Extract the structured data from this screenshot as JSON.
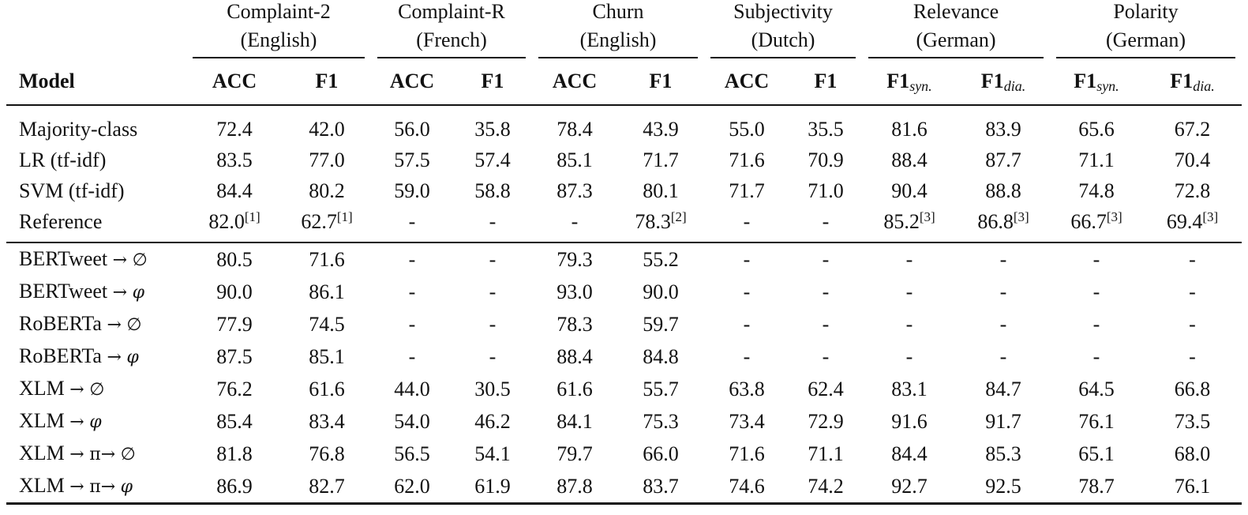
{
  "table": {
    "model_header": "Model",
    "groups": [
      {
        "name": "Complaint-2",
        "lang": "(English)",
        "cols": [
          {
            "label": "ACC",
            "sub": ""
          },
          {
            "label": "F1",
            "sub": ""
          }
        ]
      },
      {
        "name": "Complaint-R",
        "lang": "(French)",
        "cols": [
          {
            "label": "ACC",
            "sub": ""
          },
          {
            "label": "F1",
            "sub": ""
          }
        ]
      },
      {
        "name": "Churn",
        "lang": "(English)",
        "cols": [
          {
            "label": "ACC",
            "sub": ""
          },
          {
            "label": "F1",
            "sub": ""
          }
        ]
      },
      {
        "name": "Subjectivity",
        "lang": "(Dutch)",
        "cols": [
          {
            "label": "ACC",
            "sub": ""
          },
          {
            "label": "F1",
            "sub": ""
          }
        ]
      },
      {
        "name": "Relevance",
        "lang": "(German)",
        "cols": [
          {
            "label": "F1",
            "sub": "syn."
          },
          {
            "label": "F1",
            "sub": "dia."
          }
        ]
      },
      {
        "name": "Polarity",
        "lang": "(German)",
        "cols": [
          {
            "label": "F1",
            "sub": "syn."
          },
          {
            "label": "F1",
            "sub": "dia."
          }
        ]
      }
    ],
    "baselines": [
      {
        "model": {
          "base": "Majority-class",
          "arrow1": "",
          "mid": "",
          "arrow2": "",
          "target": ""
        },
        "cells": [
          {
            "v": "72.4"
          },
          {
            "v": "42.0"
          },
          {
            "v": "56.0"
          },
          {
            "v": "35.8"
          },
          {
            "v": "78.4"
          },
          {
            "v": "43.9"
          },
          {
            "v": "55.0"
          },
          {
            "v": "35.5"
          },
          {
            "v": "81.6"
          },
          {
            "v": "83.9"
          },
          {
            "v": "65.6"
          },
          {
            "v": "67.2"
          }
        ]
      },
      {
        "model": {
          "base": "LR (tf-idf)",
          "arrow1": "",
          "mid": "",
          "arrow2": "",
          "target": ""
        },
        "cells": [
          {
            "v": "83.5"
          },
          {
            "v": "77.0"
          },
          {
            "v": "57.5"
          },
          {
            "v": "57.4"
          },
          {
            "v": "85.1"
          },
          {
            "v": "71.7"
          },
          {
            "v": "71.6"
          },
          {
            "v": "70.9"
          },
          {
            "v": "88.4"
          },
          {
            "v": "87.7"
          },
          {
            "v": "71.1"
          },
          {
            "v": "70.4"
          }
        ]
      },
      {
        "model": {
          "base": "SVM (tf-idf)",
          "arrow1": "",
          "mid": "",
          "arrow2": "",
          "target": ""
        },
        "cells": [
          {
            "v": "84.4"
          },
          {
            "v": "80.2"
          },
          {
            "v": "59.0"
          },
          {
            "v": "58.8"
          },
          {
            "v": "87.3"
          },
          {
            "v": "80.1"
          },
          {
            "v": "71.7"
          },
          {
            "v": "71.0"
          },
          {
            "v": "90.4"
          },
          {
            "v": "88.8"
          },
          {
            "v": "74.8"
          },
          {
            "v": "72.8"
          }
        ]
      },
      {
        "model": {
          "base": "Reference",
          "arrow1": "",
          "mid": "",
          "arrow2": "",
          "target": ""
        },
        "cells": [
          {
            "v": "82.0",
            "ref": "[1]"
          },
          {
            "v": "62.7",
            "ref": "[1]"
          },
          {
            "v": "-"
          },
          {
            "v": "-"
          },
          {
            "v": "-"
          },
          {
            "v": "78.3",
            "ref": "[2]"
          },
          {
            "v": "-"
          },
          {
            "v": "-"
          },
          {
            "v": "85.2",
            "ref": "[3]"
          },
          {
            "v": "86.8",
            "ref": "[3]"
          },
          {
            "v": "66.7",
            "ref": "[3]"
          },
          {
            "v": "69.4",
            "ref": "[3]"
          }
        ]
      }
    ],
    "models": [
      {
        "model": {
          "base": "BERTweet",
          "arrow1": "→",
          "mid": "",
          "arrow2": "",
          "target": "∅"
        },
        "cells": [
          {
            "v": "80.5"
          },
          {
            "v": "71.6"
          },
          {
            "v": "-"
          },
          {
            "v": "-"
          },
          {
            "v": "79.3"
          },
          {
            "v": "55.2"
          },
          {
            "v": "-"
          },
          {
            "v": "-"
          },
          {
            "v": "-"
          },
          {
            "v": "-"
          },
          {
            "v": "-"
          },
          {
            "v": "-"
          }
        ]
      },
      {
        "model": {
          "base": "BERTweet",
          "arrow1": "→",
          "mid": "",
          "arrow2": "",
          "target": "φ"
        },
        "cells": [
          {
            "v": "90.0",
            "bold": true
          },
          {
            "v": "86.1",
            "bold": true
          },
          {
            "v": "-"
          },
          {
            "v": "-"
          },
          {
            "v": "93.0",
            "bold": true
          },
          {
            "v": "90.0",
            "bold": true
          },
          {
            "v": "-"
          },
          {
            "v": "-"
          },
          {
            "v": "-"
          },
          {
            "v": "-"
          },
          {
            "v": "-"
          },
          {
            "v": "-"
          }
        ]
      },
      {
        "model": {
          "base": "RoBERTa",
          "arrow1": "→",
          "mid": "",
          "arrow2": "",
          "target": "∅"
        },
        "cells": [
          {
            "v": "77.9"
          },
          {
            "v": "74.5"
          },
          {
            "v": "-"
          },
          {
            "v": "-"
          },
          {
            "v": "78.3"
          },
          {
            "v": "59.7"
          },
          {
            "v": "-"
          },
          {
            "v": "-"
          },
          {
            "v": "-"
          },
          {
            "v": "-"
          },
          {
            "v": "-"
          },
          {
            "v": "-"
          }
        ]
      },
      {
        "model": {
          "base": "RoBERTa",
          "arrow1": "→",
          "mid": "",
          "arrow2": "",
          "target": "φ"
        },
        "cells": [
          {
            "v": "87.5"
          },
          {
            "v": "85.1"
          },
          {
            "v": "-"
          },
          {
            "v": "-"
          },
          {
            "v": "88.4"
          },
          {
            "v": "84.8"
          },
          {
            "v": "-"
          },
          {
            "v": "-"
          },
          {
            "v": "-"
          },
          {
            "v": "-"
          },
          {
            "v": "-"
          },
          {
            "v": "-"
          }
        ]
      },
      {
        "model": {
          "base": "XLM",
          "arrow1": "→",
          "mid": "",
          "arrow2": "",
          "target": "∅"
        },
        "cells": [
          {
            "v": "76.2"
          },
          {
            "v": "61.6"
          },
          {
            "v": "44.0"
          },
          {
            "v": "30.5"
          },
          {
            "v": "61.6"
          },
          {
            "v": "55.7"
          },
          {
            "v": "63.8"
          },
          {
            "v": "62.4"
          },
          {
            "v": "83.1"
          },
          {
            "v": "84.7"
          },
          {
            "v": "64.5"
          },
          {
            "v": "66.8"
          }
        ]
      },
      {
        "model": {
          "base": "XLM",
          "arrow1": "→",
          "mid": "",
          "arrow2": "",
          "target": "φ"
        },
        "cells": [
          {
            "v": "85.4"
          },
          {
            "v": "83.4"
          },
          {
            "v": "54.0"
          },
          {
            "v": "46.2"
          },
          {
            "v": "84.1"
          },
          {
            "v": "75.3"
          },
          {
            "v": "73.4"
          },
          {
            "v": "72.9"
          },
          {
            "v": "91.6"
          },
          {
            "v": "91.7"
          },
          {
            "v": "76.1"
          },
          {
            "v": "73.5"
          }
        ]
      },
      {
        "model": {
          "base": "XLM",
          "arrow1": "→",
          "mid": "π",
          "arrow2": "→",
          "target": "∅"
        },
        "cells": [
          {
            "v": "81.8"
          },
          {
            "v": "76.8"
          },
          {
            "v": "56.5"
          },
          {
            "v": "54.1"
          },
          {
            "v": "79.7"
          },
          {
            "v": "66.0"
          },
          {
            "v": "71.6"
          },
          {
            "v": "71.1"
          },
          {
            "v": "84.4"
          },
          {
            "v": "85.3"
          },
          {
            "v": "65.1"
          },
          {
            "v": "68.0"
          }
        ]
      },
      {
        "model": {
          "base": "XLM",
          "arrow1": "→",
          "mid": "π",
          "arrow2": "→",
          "target": "φ"
        },
        "cells": [
          {
            "v": "86.9"
          },
          {
            "v": "82.7"
          },
          {
            "v": "62.0",
            "bold": true
          },
          {
            "v": "61.9",
            "bold": true
          },
          {
            "v": "87.8"
          },
          {
            "v": "83.7"
          },
          {
            "v": "74.6",
            "bold": true
          },
          {
            "v": "74.2",
            "bold": true
          },
          {
            "v": "92.7",
            "bold": true
          },
          {
            "v": "92.5",
            "bold": true
          },
          {
            "v": "78.7",
            "bold": true
          },
          {
            "v": "76.1",
            "bold": true
          }
        ]
      }
    ]
  }
}
